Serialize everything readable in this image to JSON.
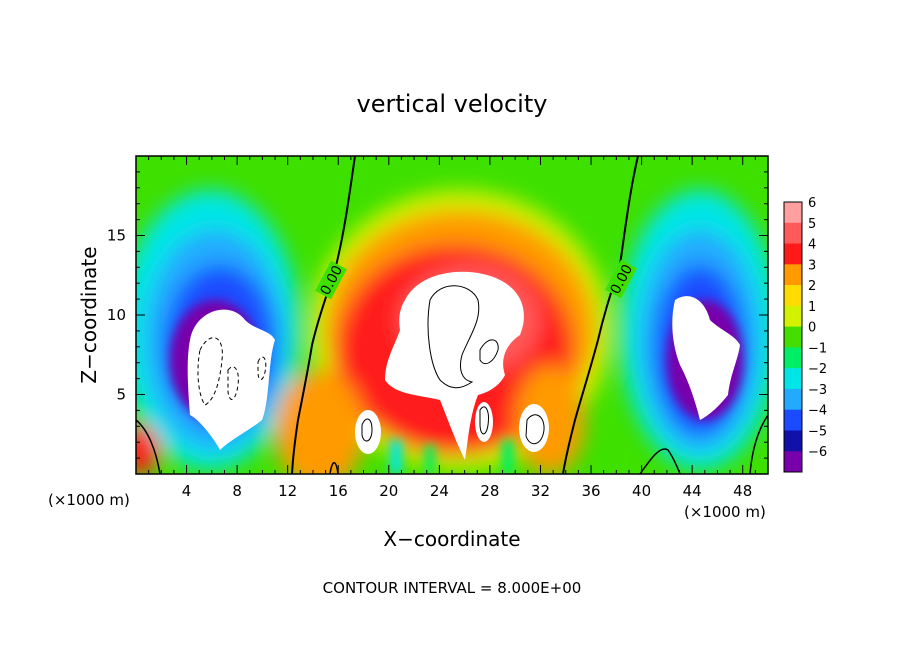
{
  "chart_data": {
    "type": "heatmap",
    "title": "vertical velocity",
    "xlabel": "X−coordinate",
    "ylabel": "Z−coordinate",
    "x_unit_label": "(×1000 m)",
    "z_unit_label": "(×1000 m)",
    "xlim": [
      0,
      50
    ],
    "ylim": [
      0,
      20
    ],
    "x_ticks": [
      4,
      8,
      12,
      16,
      20,
      24,
      28,
      32,
      36,
      40,
      44,
      48
    ],
    "y_ticks": [
      5,
      10,
      15
    ],
    "colorbar": {
      "levels": [
        6,
        5,
        4,
        3,
        2,
        1,
        0,
        -1,
        -2,
        -3,
        -4,
        -5,
        -6
      ],
      "labels": [
        "6",
        "5",
        "4",
        "3",
        "2",
        "1",
        "0",
        "−1",
        "−2",
        "−3",
        "−4",
        "−5",
        "−6"
      ],
      "colors": [
        "#ff9f9f",
        "#ff5a5a",
        "#ff1a1a",
        "#ff9a00",
        "#ffdc00",
        "#d2f200",
        "#44dd00",
        "#00ee66",
        "#00e6e6",
        "#22aaff",
        "#1a4bff",
        "#1111aa",
        "#7700aa"
      ]
    },
    "contour_labels": [
      "0.00",
      "0.00"
    ],
    "contour_interval_text": "CONTOUR INTERVAL = 8.000E+00"
  }
}
